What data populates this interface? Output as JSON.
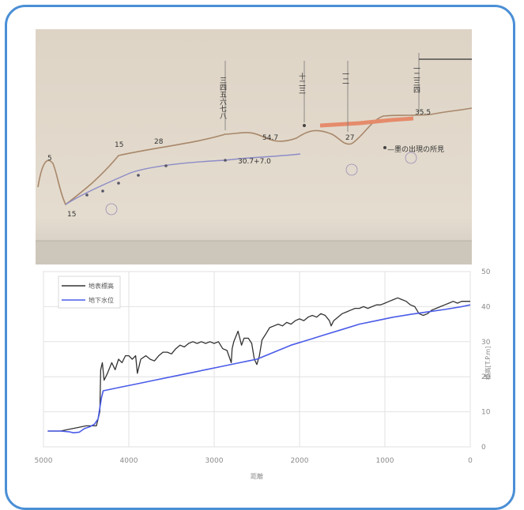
{
  "photo_annotations": [
    "15",
    "28",
    "54.7",
    "30.7+7.0",
    "35.5",
    "5",
    "15",
    "27"
  ],
  "chart_data": {
    "type": "line",
    "xlabel": "距離",
    "ylabel": "標高[T.P.m]",
    "xlim": [
      5000,
      0
    ],
    "ylim": [
      0,
      50
    ],
    "x_ticks": [
      "5000",
      "4000",
      "3000",
      "2000",
      "1000",
      "0"
    ],
    "y_ticks": [
      "0",
      "10",
      "20",
      "30",
      "40",
      "50"
    ],
    "grid": true,
    "legend_position": "top-left",
    "series": [
      {
        "name": "地表標高",
        "color": "#333333",
        "points": [
          [
            4950,
            4.5
          ],
          [
            4800,
            4.5
          ],
          [
            4700,
            5
          ],
          [
            4600,
            5.5
          ],
          [
            4500,
            6
          ],
          [
            4420,
            6
          ],
          [
            4380,
            6
          ],
          [
            4340,
            10
          ],
          [
            4330,
            22
          ],
          [
            4310,
            24
          ],
          [
            4290,
            19
          ],
          [
            4250,
            21
          ],
          [
            4200,
            24
          ],
          [
            4160,
            22
          ],
          [
            4120,
            25
          ],
          [
            4080,
            24
          ],
          [
            4040,
            26
          ],
          [
            4000,
            26
          ],
          [
            3960,
            25
          ],
          [
            3920,
            26
          ],
          [
            3900,
            21
          ],
          [
            3860,
            25
          ],
          [
            3800,
            26
          ],
          [
            3750,
            25
          ],
          [
            3700,
            24.5
          ],
          [
            3650,
            26
          ],
          [
            3600,
            27
          ],
          [
            3550,
            27
          ],
          [
            3500,
            26.5
          ],
          [
            3450,
            28
          ],
          [
            3400,
            29
          ],
          [
            3350,
            28.5
          ],
          [
            3300,
            29.5
          ],
          [
            3250,
            30
          ],
          [
            3200,
            29.5
          ],
          [
            3150,
            30
          ],
          [
            3100,
            29.5
          ],
          [
            3050,
            30
          ],
          [
            3000,
            29.5
          ],
          [
            2950,
            30
          ],
          [
            2900,
            28
          ],
          [
            2850,
            27.5
          ],
          [
            2800,
            24
          ],
          [
            2790,
            28
          ],
          [
            2770,
            30
          ],
          [
            2720,
            33
          ],
          [
            2700,
            31
          ],
          [
            2680,
            29
          ],
          [
            2650,
            31
          ],
          [
            2600,
            31
          ],
          [
            2560,
            29.5
          ],
          [
            2530,
            25
          ],
          [
            2500,
            23.5
          ],
          [
            2470,
            26
          ],
          [
            2440,
            30.5
          ],
          [
            2400,
            32
          ],
          [
            2350,
            34
          ],
          [
            2300,
            34.5
          ],
          [
            2250,
            35
          ],
          [
            2200,
            34.5
          ],
          [
            2150,
            35.5
          ],
          [
            2100,
            35
          ],
          [
            2050,
            36
          ],
          [
            2000,
            36.5
          ],
          [
            1950,
            36
          ],
          [
            1900,
            37
          ],
          [
            1850,
            37.5
          ],
          [
            1800,
            37
          ],
          [
            1750,
            38
          ],
          [
            1700,
            37.5
          ],
          [
            1650,
            36
          ],
          [
            1630,
            34.5
          ],
          [
            1600,
            36
          ],
          [
            1550,
            37
          ],
          [
            1500,
            38
          ],
          [
            1450,
            38.5
          ],
          [
            1400,
            39
          ],
          [
            1350,
            39.5
          ],
          [
            1300,
            39.5
          ],
          [
            1250,
            40
          ],
          [
            1200,
            39.5
          ],
          [
            1150,
            40
          ],
          [
            1100,
            40.5
          ],
          [
            1050,
            40.5
          ],
          [
            1000,
            41
          ],
          [
            950,
            41.5
          ],
          [
            900,
            42
          ],
          [
            850,
            42.5
          ],
          [
            800,
            42
          ],
          [
            750,
            41.5
          ],
          [
            700,
            40.5
          ],
          [
            650,
            40
          ],
          [
            600,
            38
          ],
          [
            550,
            37.5
          ],
          [
            500,
            38
          ],
          [
            450,
            39
          ],
          [
            400,
            39.5
          ],
          [
            350,
            40
          ],
          [
            300,
            40.5
          ],
          [
            250,
            41
          ],
          [
            200,
            41.5
          ],
          [
            150,
            41
          ],
          [
            100,
            41.5
          ],
          [
            50,
            41.5
          ],
          [
            0,
            41.5
          ]
        ]
      },
      {
        "name": "地下水位",
        "color": "#4a5be8",
        "points": [
          [
            4950,
            4.5
          ],
          [
            4800,
            4.5
          ],
          [
            4700,
            4.3
          ],
          [
            4650,
            4
          ],
          [
            4580,
            4.2
          ],
          [
            4520,
            5.2
          ],
          [
            4450,
            5.8
          ],
          [
            4400,
            6.5
          ],
          [
            4360,
            8
          ],
          [
            4320,
            14
          ],
          [
            4300,
            16
          ],
          [
            4100,
            17
          ],
          [
            3900,
            18
          ],
          [
            3700,
            19
          ],
          [
            3500,
            20
          ],
          [
            3300,
            21
          ],
          [
            3100,
            22
          ],
          [
            2900,
            23
          ],
          [
            2700,
            24
          ],
          [
            2600,
            24.5
          ],
          [
            2500,
            25
          ],
          [
            2300,
            27
          ],
          [
            2100,
            29
          ],
          [
            1900,
            30.5
          ],
          [
            1700,
            32
          ],
          [
            1500,
            33.5
          ],
          [
            1300,
            35
          ],
          [
            1100,
            36
          ],
          [
            900,
            37
          ],
          [
            700,
            37.8
          ],
          [
            500,
            38.5
          ],
          [
            300,
            39.2
          ],
          [
            100,
            40
          ],
          [
            0,
            40.5
          ]
        ]
      }
    ]
  }
}
